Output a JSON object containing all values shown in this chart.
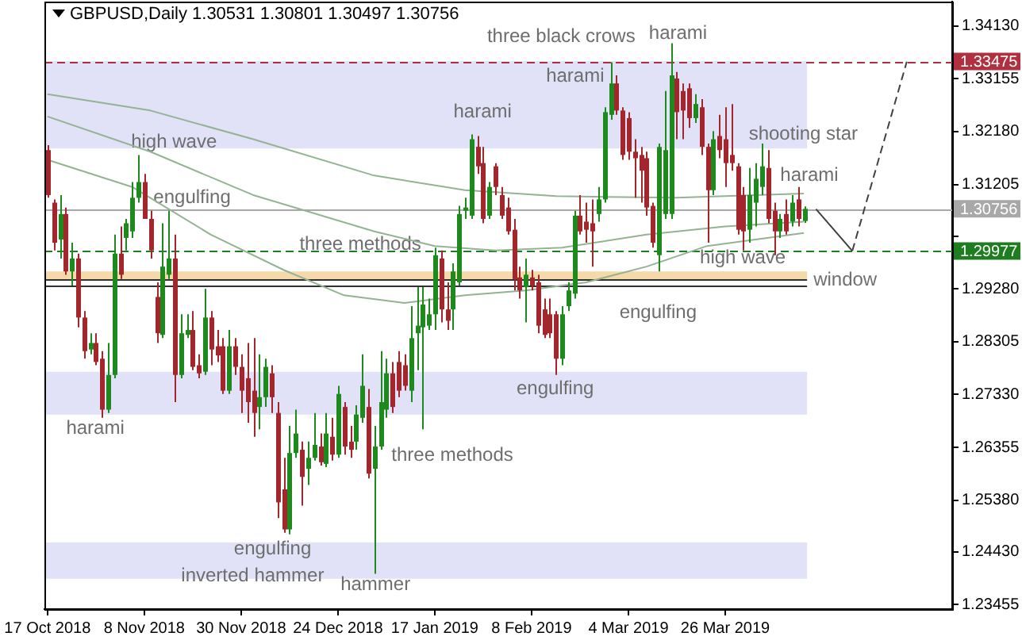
{
  "chart_data": {
    "type": "candlestick",
    "title": "GBPUSD,Daily 1.30531 1.30801 1.30497 1.30756",
    "categories": [
      "17 Oct 2018",
      null,
      null,
      null,
      null,
      null,
      null,
      null,
      null,
      null,
      null,
      null,
      null,
      null,
      null,
      null,
      "8 Nov 2018",
      null,
      null,
      null,
      null,
      null,
      null,
      null,
      null,
      null,
      null,
      null,
      null,
      null,
      null,
      null,
      "30 Nov 2018",
      null,
      null,
      null,
      null,
      null,
      null,
      null,
      null,
      null,
      null,
      null,
      null,
      null,
      null,
      null,
      "24 Dec 2018",
      null,
      null,
      null,
      null,
      null,
      null,
      null,
      null,
      null,
      null,
      null,
      null,
      null,
      null,
      null,
      "17 Jan 2019",
      null,
      null,
      null,
      null,
      null,
      null,
      null,
      null,
      null,
      null,
      null,
      null,
      null,
      null,
      null,
      "8 Feb 2019",
      null,
      null,
      null,
      null,
      null,
      null,
      null,
      null,
      null,
      null,
      null,
      null,
      null,
      null,
      null,
      "4 Mar 2019",
      null,
      null,
      null,
      null,
      null,
      null,
      null,
      null,
      null,
      null,
      null,
      null,
      null,
      null,
      null,
      "26 Mar 2019",
      null,
      null,
      null,
      null,
      null,
      null,
      null,
      null,
      null,
      null,
      null,
      null,
      null,
      null,
      null,
      null,
      null,
      null,
      null,
      null,
      null,
      null,
      null,
      null,
      null,
      null,
      null,
      null,
      null,
      null,
      null,
      null,
      null,
      null,
      null,
      null,
      null
    ],
    "ohlc": [
      [
        1.3184,
        1.3193,
        1.3096,
        1.3101
      ],
      [
        1.3087,
        1.3093,
        1.2999,
        1.3013
      ],
      [
        1.3019,
        1.3101,
        1.2984,
        1.3066
      ],
      [
        1.3066,
        1.3078,
        1.2954,
        1.296
      ],
      [
        1.296,
        1.3013,
        1.2934,
        1.2984
      ],
      [
        1.2984,
        1.2993,
        1.2857,
        1.2875
      ],
      [
        1.2875,
        1.2887,
        1.2799,
        1.2813
      ],
      [
        1.2816,
        1.2846,
        1.2807,
        1.2828
      ],
      [
        1.2828,
        1.2846,
        1.2787,
        1.2793
      ],
      [
        1.2799,
        1.2813,
        1.269,
        1.2705
      ],
      [
        1.2705,
        1.2828,
        1.2699,
        1.2769
      ],
      [
        1.2769,
        1.3028,
        1.2763,
        1.2993
      ],
      [
        1.2993,
        1.3043,
        1.2946,
        1.2954
      ],
      [
        1.3022,
        1.3057,
        1.2999,
        1.3049
      ],
      [
        1.3034,
        1.3125,
        1.3022,
        1.3096
      ],
      [
        1.3096,
        1.3175,
        1.3087,
        1.3125
      ],
      [
        1.3125,
        1.314,
        1.3057,
        1.3057
      ],
      [
        1.3057,
        1.3072,
        1.2984,
        1.2999
      ],
      [
        1.2913,
        1.294,
        1.2828,
        1.2846
      ],
      [
        1.2843,
        1.3049,
        1.2837,
        1.2969
      ],
      [
        1.2954,
        1.3072,
        1.2946,
        1.2984
      ],
      [
        1.2984,
        1.3028,
        1.2719,
        1.2769
      ],
      [
        1.2769,
        1.2881,
        1.2763,
        1.2846
      ],
      [
        1.2843,
        1.2881,
        1.2837,
        1.2852
      ],
      [
        1.2852,
        1.2887,
        1.2778,
        1.2784
      ],
      [
        1.2787,
        1.2807,
        1.2763,
        1.2772
      ],
      [
        1.2775,
        1.2928,
        1.2769,
        1.2875
      ],
      [
        1.2875,
        1.2887,
        1.2787,
        1.2816
      ],
      [
        1.2822,
        1.2852,
        1.2793,
        1.2805
      ],
      [
        1.2822,
        1.2837,
        1.2734,
        1.274
      ],
      [
        1.274,
        1.2852,
        1.2734,
        1.2822
      ],
      [
        1.2822,
        1.2837,
        1.2769,
        1.2784
      ],
      [
        1.2784,
        1.2807,
        1.2699,
        1.274
      ],
      [
        1.2763,
        1.2828,
        1.2681,
        1.2719
      ],
      [
        1.274,
        1.2837,
        1.2655,
        1.2699
      ],
      [
        1.271,
        1.2807,
        1.2669,
        1.2728
      ],
      [
        1.2728,
        1.2799,
        1.271,
        1.2784
      ],
      [
        1.2772,
        1.2787,
        1.2699,
        1.2728
      ],
      [
        1.2699,
        1.2719,
        1.2505,
        1.2534
      ],
      [
        1.2558,
        1.2616,
        1.2478,
        1.2484
      ],
      [
        1.2484,
        1.2675,
        1.2475,
        1.2625
      ],
      [
        1.2625,
        1.2705,
        1.2616,
        1.2661
      ],
      [
        1.2631,
        1.2646,
        1.2528,
        1.2581
      ],
      [
        1.2596,
        1.2646,
        1.2566,
        1.2616
      ],
      [
        1.2616,
        1.2699,
        1.2611,
        1.264
      ],
      [
        1.2637,
        1.2661,
        1.2602,
        1.2608
      ],
      [
        1.2605,
        1.2699,
        1.2599,
        1.2661
      ],
      [
        1.2655,
        1.269,
        1.2611,
        1.2622
      ],
      [
        1.2622,
        1.2749,
        1.2616,
        1.2734
      ],
      [
        1.271,
        1.2719,
        1.2622,
        1.2637
      ],
      [
        1.2646,
        1.2675,
        1.2616,
        1.2631
      ],
      [
        1.2646,
        1.2713,
        1.2631,
        1.2696
      ],
      [
        1.269,
        1.2807,
        1.2681,
        1.2749
      ],
      [
        1.271,
        1.2743,
        1.2578,
        1.2587
      ],
      [
        1.2596,
        1.2675,
        1.2402,
        1.2637
      ],
      [
        1.2637,
        1.2813,
        1.2631,
        1.2719
      ],
      [
        1.2705,
        1.2799,
        1.269,
        1.2772
      ],
      [
        1.2772,
        1.2793,
        1.2699,
        1.271
      ],
      [
        1.2793,
        1.2813,
        1.2728,
        1.274
      ],
      [
        1.2787,
        1.2807,
        1.274,
        1.2749
      ],
      [
        1.274,
        1.2896,
        1.2719,
        1.2837
      ],
      [
        1.2846,
        1.2931,
        1.2778,
        1.286
      ],
      [
        1.2857,
        1.2931,
        1.2669,
        1.2899
      ],
      [
        1.286,
        1.291,
        1.2852,
        1.2881
      ],
      [
        1.2881,
        1.3004,
        1.2852,
        1.299
      ],
      [
        1.2984,
        1.2999,
        1.2866,
        1.289
      ],
      [
        1.289,
        1.294,
        1.2852,
        1.2869
      ],
      [
        1.289,
        1.2975,
        1.2852,
        1.296
      ],
      [
        1.294,
        1.3081,
        1.2934,
        1.3066
      ],
      [
        1.3072,
        1.3096,
        1.3057,
        1.3078
      ],
      [
        1.3063,
        1.3213,
        1.3057,
        1.3204
      ],
      [
        1.319,
        1.321,
        1.314,
        1.3154
      ],
      [
        1.316,
        1.319,
        1.3049,
        1.3057
      ],
      [
        1.3063,
        1.3125,
        1.3057,
        1.3116
      ],
      [
        1.3154,
        1.316,
        1.3101,
        1.3116
      ],
      [
        1.3101,
        1.3116,
        1.3057,
        1.3063
      ],
      [
        1.3078,
        1.3096,
        1.3028,
        1.3034
      ],
      [
        1.3037,
        1.3057,
        1.2925,
        1.2946
      ],
      [
        1.2949,
        1.2969,
        1.291,
        1.2925
      ],
      [
        1.2931,
        1.2984,
        1.2866,
        1.2954
      ],
      [
        1.2949,
        1.2963,
        1.2925,
        1.2934
      ],
      [
        1.294,
        1.2954,
        1.2846,
        1.286
      ],
      [
        1.289,
        1.291,
        1.2837,
        1.2843
      ],
      [
        1.2881,
        1.291,
        1.2837,
        1.2846
      ],
      [
        1.2881,
        1.2887,
        1.2769,
        1.2799
      ],
      [
        1.2799,
        1.2896,
        1.2787,
        1.2881
      ],
      [
        1.2896,
        1.294,
        1.2887,
        1.2925
      ],
      [
        1.2919,
        1.3072,
        1.291,
        1.3063
      ],
      [
        1.3063,
        1.3101,
        1.3028,
        1.3034
      ],
      [
        1.3052,
        1.3087,
        1.3013,
        1.3037
      ],
      [
        1.3049,
        1.3093,
        1.2969,
        1.3034
      ],
      [
        1.3066,
        1.3116,
        1.3052,
        1.3093
      ],
      [
        1.3093,
        1.3263,
        1.3087,
        1.3254
      ],
      [
        1.3249,
        1.3346,
        1.324,
        1.3307
      ],
      [
        1.3307,
        1.3322,
        1.3249,
        1.3257
      ],
      [
        1.3257,
        1.3263,
        1.3166,
        1.3175
      ],
      [
        1.3243,
        1.3254,
        1.3166,
        1.3181
      ],
      [
        1.3181,
        1.3204,
        1.3096,
        1.3169
      ],
      [
        1.3175,
        1.319,
        1.3087,
        1.3146
      ],
      [
        1.3169,
        1.3181,
        1.3063,
        1.3078
      ],
      [
        1.3081,
        1.3087,
        1.3004,
        1.3013
      ],
      [
        1.299,
        1.3196,
        1.296,
        1.319
      ],
      [
        1.3066,
        1.3293,
        1.3057,
        1.3184
      ],
      [
        1.3066,
        1.3381,
        1.3057,
        1.3322
      ],
      [
        1.3316,
        1.3328,
        1.3204,
        1.3254
      ],
      [
        1.3293,
        1.3307,
        1.3204,
        1.3257
      ],
      [
        1.3298,
        1.3307,
        1.3225,
        1.3243
      ],
      [
        1.3243,
        1.3287,
        1.3234,
        1.3269
      ],
      [
        1.3263,
        1.3278,
        1.3175,
        1.319
      ],
      [
        1.319,
        1.3196,
        1.3013,
        1.311
      ],
      [
        1.311,
        1.3219,
        1.3101,
        1.3204
      ],
      [
        1.321,
        1.3249,
        1.3169,
        1.3184
      ],
      [
        1.3204,
        1.3263,
        1.3116,
        1.316
      ],
      [
        1.3175,
        1.3269,
        1.3146,
        1.316
      ],
      [
        1.3154,
        1.316,
        1.3028,
        1.3037
      ],
      [
        1.3101,
        1.3116,
        1.2999,
        1.3034
      ],
      [
        1.3037,
        1.3151,
        1.3013,
        1.3101
      ],
      [
        1.3087,
        1.316,
        1.3043,
        1.3131
      ],
      [
        1.3116,
        1.3196,
        1.3101,
        1.3154
      ],
      [
        1.3151,
        1.3184,
        1.3049,
        1.3057
      ],
      [
        1.3072,
        1.3087,
        1.299,
        1.3034
      ],
      [
        1.3034,
        1.3066,
        1.3022,
        1.3057
      ],
      [
        1.3066,
        1.3093,
        1.3028,
        1.3034
      ],
      [
        1.3052,
        1.3101,
        1.3043,
        1.3087
      ],
      [
        1.3093,
        1.3116,
        1.3043,
        1.3057
      ],
      [
        1.30531,
        1.30801,
        1.30497,
        1.30756
      ],
      null,
      null,
      null,
      null,
      null,
      null,
      null,
      null,
      null,
      null,
      null,
      null,
      null,
      null,
      null,
      null,
      null,
      null,
      null,
      null,
      null,
      null,
      null,
      null
    ],
    "series": [
      {
        "type": "line",
        "color": "#93b393",
        "values": [
          1.3287,
          null,
          null,
          null,
          null,
          null,
          null,
          null,
          null,
          null,
          null,
          null,
          null,
          null,
          null,
          null,
          null,
          1.3257,
          null,
          null,
          null,
          null,
          null,
          null,
          null,
          null,
          null,
          null,
          null,
          null,
          null,
          null,
          null,
          null,
          1.3204,
          null,
          null,
          null,
          null,
          null,
          null,
          null,
          null,
          null,
          null,
          null,
          null,
          null,
          null,
          null,
          null,
          null,
          null,
          null,
          1.3137,
          null,
          null,
          null,
          null,
          null,
          null,
          null,
          null,
          null,
          null,
          null,
          null,
          null,
          null,
          1.311,
          null,
          null,
          null,
          null,
          null,
          null,
          null,
          null,
          null,
          null,
          null,
          null,
          null,
          null,
          1.3099,
          null,
          null,
          null,
          null,
          null,
          null,
          null,
          null,
          null,
          null,
          null,
          null,
          null,
          null,
          null,
          null,
          null,
          null,
          null,
          1.3096,
          null,
          null,
          null,
          null,
          null,
          null,
          null,
          null,
          null,
          null,
          null,
          null,
          null,
          null,
          null,
          null,
          null,
          null,
          null,
          null,
          1.3104,
          null,
          null,
          null,
          null,
          null,
          null,
          null,
          null,
          null,
          null,
          null,
          null,
          null,
          null,
          null,
          null,
          null,
          null,
          null,
          null,
          null,
          null,
          null,
          null
        ]
      },
      {
        "type": "line",
        "color": "#93b393",
        "values": [
          1.3246,
          null,
          null,
          null,
          null,
          null,
          null,
          null,
          null,
          null,
          null,
          null,
          null,
          null,
          null,
          null,
          null,
          1.3181,
          null,
          null,
          null,
          null,
          null,
          null,
          null,
          null,
          null,
          null,
          null,
          null,
          null,
          null,
          null,
          null,
          1.3101,
          null,
          null,
          null,
          null,
          null,
          null,
          null,
          null,
          null,
          null,
          null,
          null,
          null,
          null,
          null,
          null,
          null,
          null,
          null,
          1.3034,
          null,
          null,
          null,
          null,
          null,
          null,
          null,
          null,
          null,
          1.3007,
          null,
          null,
          null,
          null,
          null,
          null,
          null,
          null,
          null,
          1.2999,
          null,
          null,
          null,
          null,
          null,
          null,
          null,
          null,
          null,
          null,
          1.3004,
          null,
          null,
          null,
          null,
          null,
          null,
          null,
          null,
          null,
          null,
          null,
          null,
          null,
          1.3028,
          null,
          null,
          null,
          null,
          null,
          null,
          null,
          null,
          null,
          null,
          null,
          null,
          1.3043,
          null,
          null,
          null,
          null,
          null,
          null,
          null,
          null,
          null,
          null,
          null,
          null,
          1.3052,
          null,
          null,
          null,
          null,
          null,
          null,
          null,
          null,
          null,
          null,
          null,
          null,
          null,
          null,
          null,
          null,
          null,
          null,
          null,
          null,
          null,
          null,
          null,
          null
        ]
      },
      {
        "type": "line",
        "color": "#93b393",
        "values": [
          1.3166,
          null,
          null,
          null,
          null,
          null,
          null,
          null,
          null,
          null,
          null,
          null,
          null,
          null,
          1.3116,
          null,
          null,
          null,
          null,
          null,
          null,
          null,
          null,
          null,
          null,
          null,
          null,
          1.3028,
          null,
          null,
          null,
          null,
          null,
          null,
          null,
          null,
          null,
          null,
          null,
          1.2963,
          null,
          null,
          null,
          null,
          null,
          null,
          null,
          null,
          null,
          1.2916,
          null,
          null,
          null,
          null,
          null,
          null,
          null,
          null,
          null,
          1.2902,
          null,
          null,
          null,
          null,
          null,
          null,
          null,
          null,
          null,
          1.2916,
          null,
          null,
          null,
          null,
          null,
          null,
          null,
          null,
          null,
          1.2925,
          null,
          null,
          null,
          null,
          null,
          null,
          null,
          null,
          null,
          1.294,
          null,
          null,
          null,
          null,
          null,
          null,
          null,
          null,
          null,
          1.2969,
          null,
          null,
          null,
          null,
          null,
          null,
          null,
          null,
          null,
          1.3007,
          null,
          null,
          null,
          null,
          null,
          null,
          null,
          null,
          null,
          null,
          null,
          null,
          null,
          null,
          null,
          1.3031,
          null,
          null,
          null,
          null,
          null,
          null,
          null,
          null,
          null,
          null,
          null,
          null,
          null,
          null,
          null,
          null,
          null,
          null,
          null,
          null,
          null,
          null,
          null,
          null
        ]
      },
      {
        "type": "line",
        "color": "#404040",
        "line_style": "solid",
        "values": [
          null,
          null,
          null,
          null,
          null,
          null,
          null,
          null,
          null,
          null,
          null,
          null,
          null,
          null,
          null,
          null,
          null,
          null,
          null,
          null,
          null,
          null,
          null,
          null,
          null,
          null,
          null,
          null,
          null,
          null,
          null,
          null,
          null,
          null,
          null,
          null,
          null,
          null,
          null,
          null,
          null,
          null,
          null,
          null,
          null,
          null,
          null,
          null,
          null,
          null,
          null,
          null,
          null,
          null,
          null,
          null,
          null,
          null,
          null,
          null,
          null,
          null,
          null,
          null,
          null,
          null,
          null,
          null,
          null,
          null,
          null,
          null,
          null,
          null,
          null,
          null,
          null,
          null,
          null,
          null,
          null,
          null,
          null,
          null,
          null,
          null,
          null,
          null,
          null,
          null,
          null,
          null,
          null,
          null,
          null,
          null,
          null,
          null,
          null,
          null,
          null,
          null,
          null,
          null,
          null,
          null,
          null,
          null,
          null,
          null,
          null,
          null,
          null,
          null,
          null,
          null,
          null,
          null,
          null,
          null,
          null,
          null,
          null,
          null,
          null,
          null,
          null,
          1.3075,
          null,
          null,
          null,
          null,
          null,
          1.2998,
          null,
          null,
          null,
          null,
          null,
          null,
          null,
          null,
          null,
          null,
          null,
          null,
          null,
          null,
          null,
          null
        ]
      },
      {
        "type": "line",
        "color": "#404040",
        "line_style": "dashed",
        "values": [
          null,
          null,
          null,
          null,
          null,
          null,
          null,
          null,
          null,
          null,
          null,
          null,
          null,
          null,
          null,
          null,
          null,
          null,
          null,
          null,
          null,
          null,
          null,
          null,
          null,
          null,
          null,
          null,
          null,
          null,
          null,
          null,
          null,
          null,
          null,
          null,
          null,
          null,
          null,
          null,
          null,
          null,
          null,
          null,
          null,
          null,
          null,
          null,
          null,
          null,
          null,
          null,
          null,
          null,
          null,
          null,
          null,
          null,
          null,
          null,
          null,
          null,
          null,
          null,
          null,
          null,
          null,
          null,
          null,
          null,
          null,
          null,
          null,
          null,
          null,
          null,
          null,
          null,
          null,
          null,
          null,
          null,
          null,
          null,
          null,
          null,
          null,
          null,
          null,
          null,
          null,
          null,
          null,
          null,
          null,
          null,
          null,
          null,
          null,
          null,
          null,
          null,
          null,
          null,
          null,
          null,
          null,
          null,
          null,
          null,
          null,
          null,
          null,
          null,
          null,
          null,
          null,
          null,
          null,
          null,
          null,
          null,
          null,
          null,
          null,
          null,
          null,
          null,
          null,
          null,
          null,
          null,
          null,
          1.2998,
          null,
          null,
          null,
          null,
          null,
          null,
          null,
          null,
          1.3347,
          null,
          null,
          null,
          null,
          null,
          null,
          null
        ]
      }
    ],
    "ylim": [
      1.2337,
      1.3458
    ],
    "yticks": [
      {
        "value": 1.3413,
        "label": "1.34130"
      },
      1.33155,
      {
        "value": 1.3218,
        "label": "1.32180"
      },
      1.31205,
      {
        "value": 1.30255,
        "label": null
      },
      {
        "value": 1.2928,
        "label": "1.29280"
      },
      1.28305,
      {
        "value": 1.2733,
        "label": "1.27330"
      },
      1.26355,
      {
        "value": 1.2538,
        "label": "1.25380"
      },
      {
        "value": 1.2443,
        "label": "1.24430"
      },
      1.23455
    ],
    "bands": [
      {
        "axis": "y",
        "from": 1.3187,
        "to": 1.3348,
        "color": "#e1e1f7"
      },
      {
        "axis": "y",
        "from": 1.2696,
        "to": 1.2775,
        "color": "#e1e1f7"
      },
      {
        "axis": "y",
        "from": 1.2393,
        "to": 1.246,
        "color": "#e1e1f7"
      },
      {
        "axis": "y",
        "from": 1.2945,
        "to": 1.296,
        "color": "#f5d9a8",
        "label": "window"
      }
    ],
    "ref_lines": [
      {
        "axis": "y",
        "value": 1.33475,
        "label": "1.33475",
        "color": "#b03040",
        "line_style": "dashed"
      },
      {
        "axis": "y",
        "value": 1.30756,
        "label": "1.30756",
        "color": "#a8a8a8",
        "line_style": "solid"
      },
      {
        "axis": "y",
        "value": 1.29977,
        "label": "1.29977",
        "color": "#1e7d1e",
        "line_style": "dashed"
      },
      {
        "axis": "y",
        "value": 1.2945,
        "color": "#303030",
        "line_style": "solid"
      },
      {
        "axis": "y",
        "value": 1.2933,
        "color": "#303030",
        "line_style": "solid"
      }
    ],
    "annotations": [
      {
        "text": "high wave",
        "y": 1.3175
      },
      {
        "text": "engulfing",
        "y": 1.314
      },
      {
        "text": "three methods",
        "y": 1.3004
      },
      {
        "text": "harami",
        "y": 1.269
      },
      "engulfing",
      "inverted hammer",
      {
        "text": "hammer",
        "y": 1.2402
      },
      "three methods",
      {
        "text": "harami",
        "y": 1.3213
      },
      {
        "text": "three black crows",
        "y": 1.3346
      },
      {
        "text": "harami",
        "y": 1.3346
      },
      {
        "text": "engulfing",
        "y": 1.2769
      },
      {
        "text": "harami",
        "y": 1.3381
      },
      {
        "text": "engulfing",
        "y": 1.296
      },
      {
        "text": "shooting star",
        "y": 1.3196
      },
      {
        "text": "harami",
        "y": 1.3093
      },
      {
        "text": "high wave",
        "y": 1.2999
      }
    ],
    "marker": "none"
  }
}
